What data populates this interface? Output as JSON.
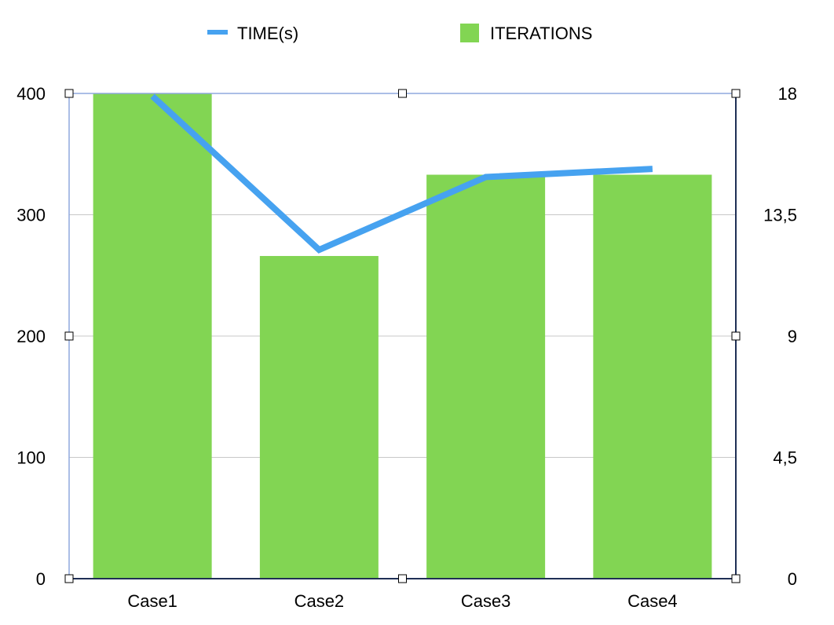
{
  "chart_data": {
    "type": "bar",
    "categories": [
      "Case1",
      "Case2",
      "Case3",
      "Case4"
    ],
    "series": [
      {
        "name": "ITERATIONS",
        "kind": "bar",
        "axis": "left",
        "values": [
          400,
          266,
          333,
          333
        ]
      },
      {
        "name": "TIME(s)",
        "kind": "line",
        "axis": "right",
        "values": [
          17.9,
          12.2,
          14.9,
          15.2
        ]
      }
    ],
    "ylim": [
      0,
      400
    ],
    "yticks": [
      "0",
      "100",
      "200",
      "300",
      "400"
    ],
    "y2lim": [
      0,
      18
    ],
    "y2ticks": [
      "0",
      "4,5",
      "9",
      "13,5",
      "18"
    ],
    "grid": true,
    "legend_position": "top",
    "colors": {
      "bar": "#82D553",
      "line": "#46A2F0",
      "grid": "#C8C8C8",
      "axis": "#1F2F55",
      "frame": "#8FA8DD"
    }
  }
}
